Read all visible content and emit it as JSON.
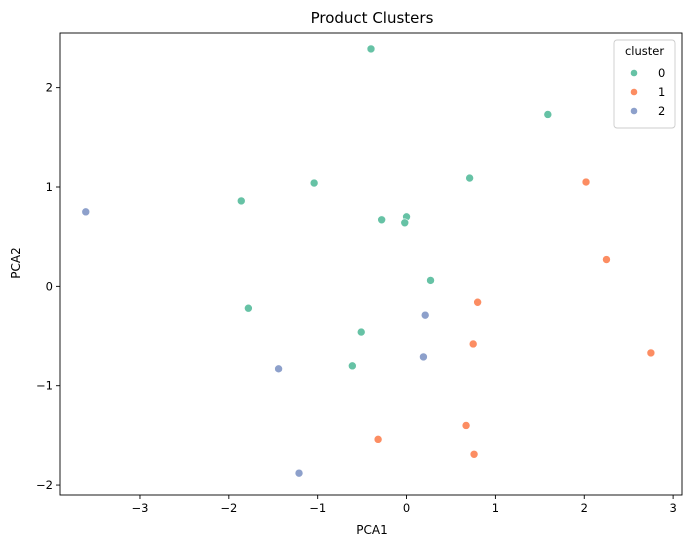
{
  "chart_data": {
    "type": "scatter",
    "title": "Product Clusters",
    "xlabel": "PCA1",
    "ylabel": "PCA2",
    "xlim": [
      -3.9,
      3.1
    ],
    "ylim": [
      -2.1,
      2.55
    ],
    "xticks": [
      -3,
      -2,
      -1,
      0,
      1,
      2,
      3
    ],
    "yticks": [
      -2,
      -1,
      0,
      1,
      2
    ],
    "grid": false,
    "legend": {
      "title": "cluster",
      "placement": "top-right"
    },
    "series": [
      {
        "name": "0",
        "color": "#66c2a5",
        "points": [
          [
            -0.4,
            2.39
          ],
          [
            1.59,
            1.73
          ],
          [
            -1.04,
            1.04
          ],
          [
            0.71,
            1.09
          ],
          [
            -1.86,
            0.86
          ],
          [
            -0.28,
            0.67
          ],
          [
            0.0,
            0.7
          ],
          [
            -0.02,
            0.64
          ],
          [
            0.27,
            0.06
          ],
          [
            -1.78,
            -0.22
          ],
          [
            -0.51,
            -0.46
          ],
          [
            -0.61,
            -0.8
          ]
        ]
      },
      {
        "name": "1",
        "color": "#fc8d62",
        "points": [
          [
            2.02,
            1.05
          ],
          [
            2.25,
            0.27
          ],
          [
            0.8,
            -0.16
          ],
          [
            0.75,
            -0.58
          ],
          [
            2.75,
            -0.67
          ],
          [
            -0.32,
            -1.54
          ],
          [
            0.67,
            -1.4
          ],
          [
            0.76,
            -1.69
          ]
        ]
      },
      {
        "name": "2",
        "color": "#8da0cb",
        "points": [
          [
            -3.61,
            0.75
          ],
          [
            0.21,
            -0.29
          ],
          [
            0.19,
            -0.71
          ],
          [
            -1.44,
            -0.83
          ],
          [
            -1.21,
            -1.88
          ]
        ]
      }
    ]
  }
}
